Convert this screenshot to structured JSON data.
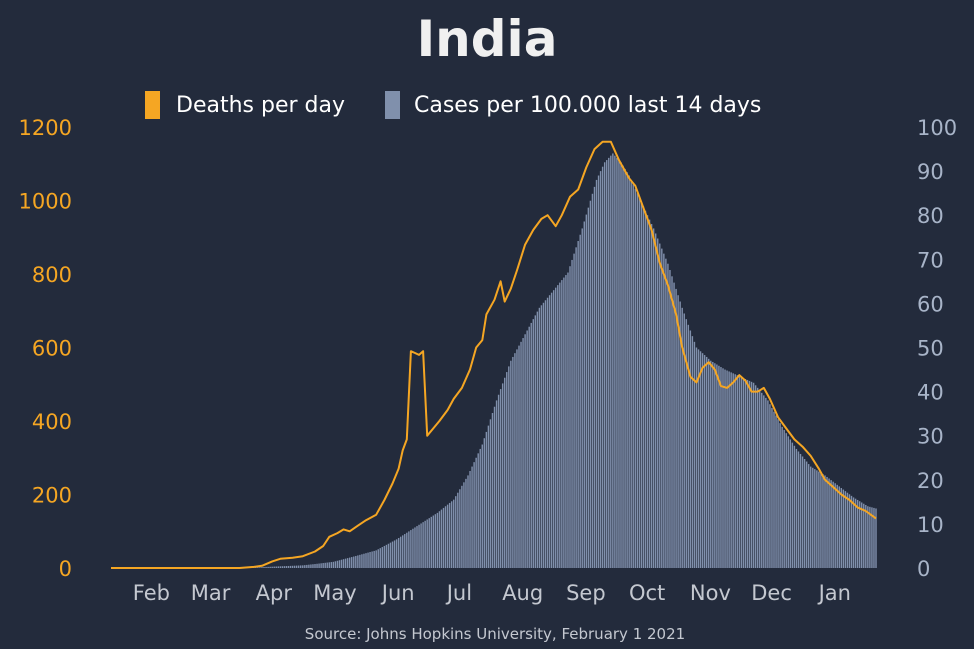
{
  "chart_data": {
    "type": "bar+line",
    "title": "India",
    "source": "Source: Johns Hopkins University, February 1 2021",
    "x_start": "2020-01-22",
    "x_end": "2021-01-31",
    "month_labels": [
      {
        "label": "Feb",
        "date": "2020-02-01"
      },
      {
        "label": "Mar",
        "date": "2020-03-01"
      },
      {
        "label": "Apr",
        "date": "2020-04-01"
      },
      {
        "label": "May",
        "date": "2020-05-01"
      },
      {
        "label": "Jun",
        "date": "2020-06-01"
      },
      {
        "label": "Jul",
        "date": "2020-07-01"
      },
      {
        "label": "Aug",
        "date": "2020-08-01"
      },
      {
        "label": "Sep",
        "date": "2020-09-01"
      },
      {
        "label": "Oct",
        "date": "2020-10-01"
      },
      {
        "label": "Nov",
        "date": "2020-11-01"
      },
      {
        "label": "Dec",
        "date": "2020-12-01"
      },
      {
        "label": "Jan",
        "date": "2021-01-01"
      }
    ],
    "left_axis": {
      "series": "Deaths per day",
      "ylim": [
        0,
        1200
      ],
      "ticks": [
        0,
        200,
        400,
        600,
        800,
        1000,
        1200
      ]
    },
    "right_axis": {
      "series": "Cases per 100.000 last 14 days",
      "ylim": [
        0,
        100
      ],
      "ticks": [
        0,
        10,
        20,
        30,
        40,
        50,
        60,
        70,
        80,
        90,
        100
      ]
    },
    "colors": {
      "background": "#232b3c",
      "deaths": "#f5a623",
      "cases": "#8090ac",
      "title": "#f0f0f0",
      "legend_text": "#ffffff",
      "left_tick": "#f5a623",
      "right_tick": "#a8b4c8",
      "x_tick": "#c4c8d0",
      "source": "#c4c8d0"
    },
    "legend": [
      {
        "label": "Deaths per day",
        "series": "deaths"
      },
      {
        "label": "Cases per 100.000 last 14 days",
        "series": "cases"
      }
    ],
    "series": [
      {
        "name": "Deaths per day",
        "type": "line",
        "axis": "left",
        "points": [
          [
            "2020-01-22",
            0
          ],
          [
            "2020-03-25",
            0
          ],
          [
            "2020-04-01",
            3
          ],
          [
            "2020-04-05",
            6
          ],
          [
            "2020-04-10",
            18
          ],
          [
            "2020-04-14",
            25
          ],
          [
            "2020-04-20",
            28
          ],
          [
            "2020-04-25",
            32
          ],
          [
            "2020-05-01",
            45
          ],
          [
            "2020-05-05",
            60
          ],
          [
            "2020-05-08",
            85
          ],
          [
            "2020-05-12",
            95
          ],
          [
            "2020-05-15",
            105
          ],
          [
            "2020-05-18",
            100
          ],
          [
            "2020-05-22",
            115
          ],
          [
            "2020-05-26",
            130
          ],
          [
            "2020-05-31",
            145
          ],
          [
            "2020-06-04",
            185
          ],
          [
            "2020-06-08",
            230
          ],
          [
            "2020-06-11",
            270
          ],
          [
            "2020-06-13",
            320
          ],
          [
            "2020-06-15",
            350
          ],
          [
            "2020-06-17",
            590
          ],
          [
            "2020-06-19",
            585
          ],
          [
            "2020-06-21",
            580
          ],
          [
            "2020-06-23",
            590
          ],
          [
            "2020-06-25",
            360
          ],
          [
            "2020-06-28",
            380
          ],
          [
            "2020-07-01",
            400
          ],
          [
            "2020-07-05",
            430
          ],
          [
            "2020-07-08",
            460
          ],
          [
            "2020-07-12",
            490
          ],
          [
            "2020-07-16",
            540
          ],
          [
            "2020-07-19",
            600
          ],
          [
            "2020-07-22",
            620
          ],
          [
            "2020-07-24",
            690
          ],
          [
            "2020-07-28",
            730
          ],
          [
            "2020-07-31",
            780
          ],
          [
            "2020-08-02",
            725
          ],
          [
            "2020-08-05",
            760
          ],
          [
            "2020-08-08",
            810
          ],
          [
            "2020-08-12",
            880
          ],
          [
            "2020-08-16",
            920
          ],
          [
            "2020-08-20",
            950
          ],
          [
            "2020-08-23",
            960
          ],
          [
            "2020-08-27",
            930
          ],
          [
            "2020-08-30",
            960
          ],
          [
            "2020-09-03",
            1010
          ],
          [
            "2020-09-07",
            1030
          ],
          [
            "2020-09-11",
            1090
          ],
          [
            "2020-09-15",
            1140
          ],
          [
            "2020-09-19",
            1160
          ],
          [
            "2020-09-23",
            1160
          ],
          [
            "2020-09-27",
            1110
          ],
          [
            "2020-09-30",
            1080
          ],
          [
            "2020-10-02",
            1060
          ],
          [
            "2020-10-05",
            1040
          ],
          [
            "2020-10-09",
            980
          ],
          [
            "2020-10-13",
            920
          ],
          [
            "2020-10-17",
            830
          ],
          [
            "2020-10-21",
            770
          ],
          [
            "2020-10-25",
            690
          ],
          [
            "2020-10-28",
            600
          ],
          [
            "2020-11-01",
            520
          ],
          [
            "2020-11-04",
            505
          ],
          [
            "2020-11-07",
            545
          ],
          [
            "2020-11-10",
            560
          ],
          [
            "2020-11-13",
            540
          ],
          [
            "2020-11-16",
            495
          ],
          [
            "2020-11-19",
            490
          ],
          [
            "2020-11-22",
            505
          ],
          [
            "2020-11-25",
            525
          ],
          [
            "2020-11-28",
            510
          ],
          [
            "2020-12-01",
            480
          ],
          [
            "2020-12-04",
            480
          ],
          [
            "2020-12-07",
            490
          ],
          [
            "2020-12-10",
            460
          ],
          [
            "2020-12-14",
            410
          ],
          [
            "2020-12-18",
            380
          ],
          [
            "2020-12-22",
            350
          ],
          [
            "2020-12-26",
            330
          ],
          [
            "2020-12-30",
            305
          ],
          [
            "2021-01-03",
            270
          ],
          [
            "2021-01-06",
            240
          ],
          [
            "2021-01-10",
            220
          ],
          [
            "2021-01-14",
            200
          ],
          [
            "2021-01-18",
            185
          ],
          [
            "2021-01-22",
            165
          ],
          [
            "2021-01-26",
            155
          ],
          [
            "2021-01-31",
            135
          ]
        ]
      },
      {
        "name": "Cases per 100.000 last 14 days",
        "type": "bar",
        "axis": "right",
        "points": [
          [
            "2020-01-22",
            0
          ],
          [
            "2020-03-25",
            0
          ],
          [
            "2020-04-10",
            0.3
          ],
          [
            "2020-04-25",
            0.6
          ],
          [
            "2020-05-01",
            0.9
          ],
          [
            "2020-05-10",
            1.4
          ],
          [
            "2020-05-20",
            2.6
          ],
          [
            "2020-05-31",
            4.0
          ],
          [
            "2020-06-10",
            6.5
          ],
          [
            "2020-06-20",
            9.5
          ],
          [
            "2020-06-30",
            12.5
          ],
          [
            "2020-07-08",
            15.5
          ],
          [
            "2020-07-15",
            21
          ],
          [
            "2020-07-22",
            28
          ],
          [
            "2020-07-29",
            38
          ],
          [
            "2020-08-05",
            47
          ],
          [
            "2020-08-12",
            53
          ],
          [
            "2020-08-19",
            59
          ],
          [
            "2020-08-26",
            63
          ],
          [
            "2020-09-02",
            67
          ],
          [
            "2020-09-09",
            77
          ],
          [
            "2020-09-16",
            88
          ],
          [
            "2020-09-20",
            92
          ],
          [
            "2020-09-24",
            94
          ],
          [
            "2020-09-28",
            92
          ],
          [
            "2020-10-02",
            89
          ],
          [
            "2020-10-07",
            84
          ],
          [
            "2020-10-14",
            77
          ],
          [
            "2020-10-21",
            69
          ],
          [
            "2020-10-28",
            59
          ],
          [
            "2020-11-04",
            50
          ],
          [
            "2020-11-11",
            47
          ],
          [
            "2020-11-18",
            45
          ],
          [
            "2020-11-25",
            43.5
          ],
          [
            "2020-12-02",
            42
          ],
          [
            "2020-12-09",
            38
          ],
          [
            "2020-12-16",
            32
          ],
          [
            "2020-12-23",
            27
          ],
          [
            "2020-12-30",
            23
          ],
          [
            "2021-01-06",
            21
          ],
          [
            "2021-01-13",
            18.5
          ],
          [
            "2021-01-20",
            16
          ],
          [
            "2021-01-27",
            14
          ],
          [
            "2021-01-31",
            13.5
          ]
        ]
      }
    ]
  }
}
